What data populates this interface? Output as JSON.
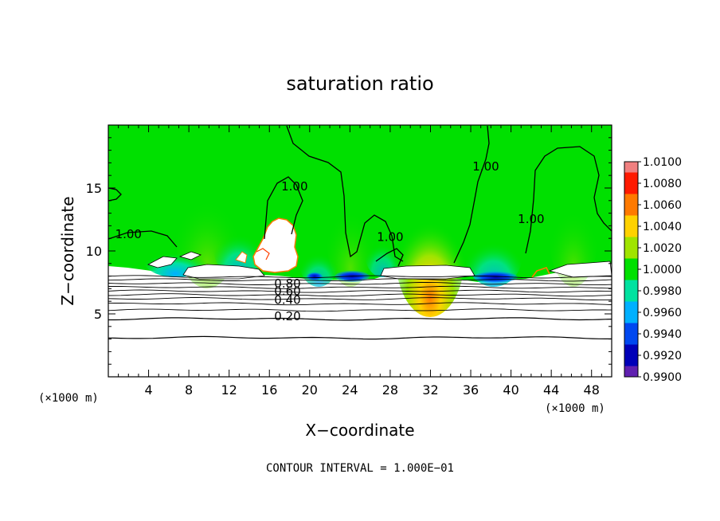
{
  "chart_data": {
    "type": "heatmap",
    "title": "saturation ratio",
    "xlabel": "X−coordinate",
    "ylabel": "Z−coordinate",
    "x_unit_left": "(×1000 m)",
    "x_unit_right": "(×1000 m)",
    "xlim": [
      0,
      50
    ],
    "ylim": [
      0,
      20
    ],
    "x_ticks": [
      4,
      8,
      12,
      16,
      20,
      24,
      28,
      32,
      36,
      40,
      44,
      48
    ],
    "x_minor_step": 1,
    "y_ticks": [
      5,
      10,
      15
    ],
    "y_minor_step": 1,
    "footer": "CONTOUR INTERVAL = 1.000E−01",
    "colorbar": {
      "min": 0.99,
      "max": 1.01,
      "labels": [
        "1.0100",
        "1.0080",
        "1.0060",
        "1.0040",
        "1.0020",
        "1.0000",
        "0.9980",
        "0.9960",
        "0.9940",
        "0.9920",
        "0.9900"
      ],
      "colors": [
        "#f08080",
        "#ff1a00",
        "#ff7a00",
        "#ffd200",
        "#a0e400",
        "#00e000",
        "#00e2a0",
        "#00b0ff",
        "#0048f0",
        "#0000b8",
        "#6020b0"
      ]
    },
    "contour_labels": [
      {
        "text": "1.00",
        "x": 2.0,
        "y": 11.0
      },
      {
        "text": "1.00",
        "x": 18.5,
        "y": 14.8
      },
      {
        "text": "1.00",
        "x": 28.0,
        "y": 10.8
      },
      {
        "text": "1.00",
        "x": 37.5,
        "y": 16.4
      },
      {
        "text": "1.00",
        "x": 42.0,
        "y": 12.2
      },
      {
        "text": "0.80",
        "x": 17.8,
        "y": 7.1
      },
      {
        "text": "0.60",
        "x": 17.8,
        "y": 6.5
      },
      {
        "text": "0.40",
        "x": 17.8,
        "y": 5.8
      },
      {
        "text": "0.20",
        "x": 17.8,
        "y": 4.5
      }
    ],
    "stable_layer_contours_z": [
      3.1,
      4.6,
      5.3,
      5.8,
      6.2,
      6.5,
      6.8,
      7.1,
      7.4,
      7.7,
      7.95
    ]
  }
}
